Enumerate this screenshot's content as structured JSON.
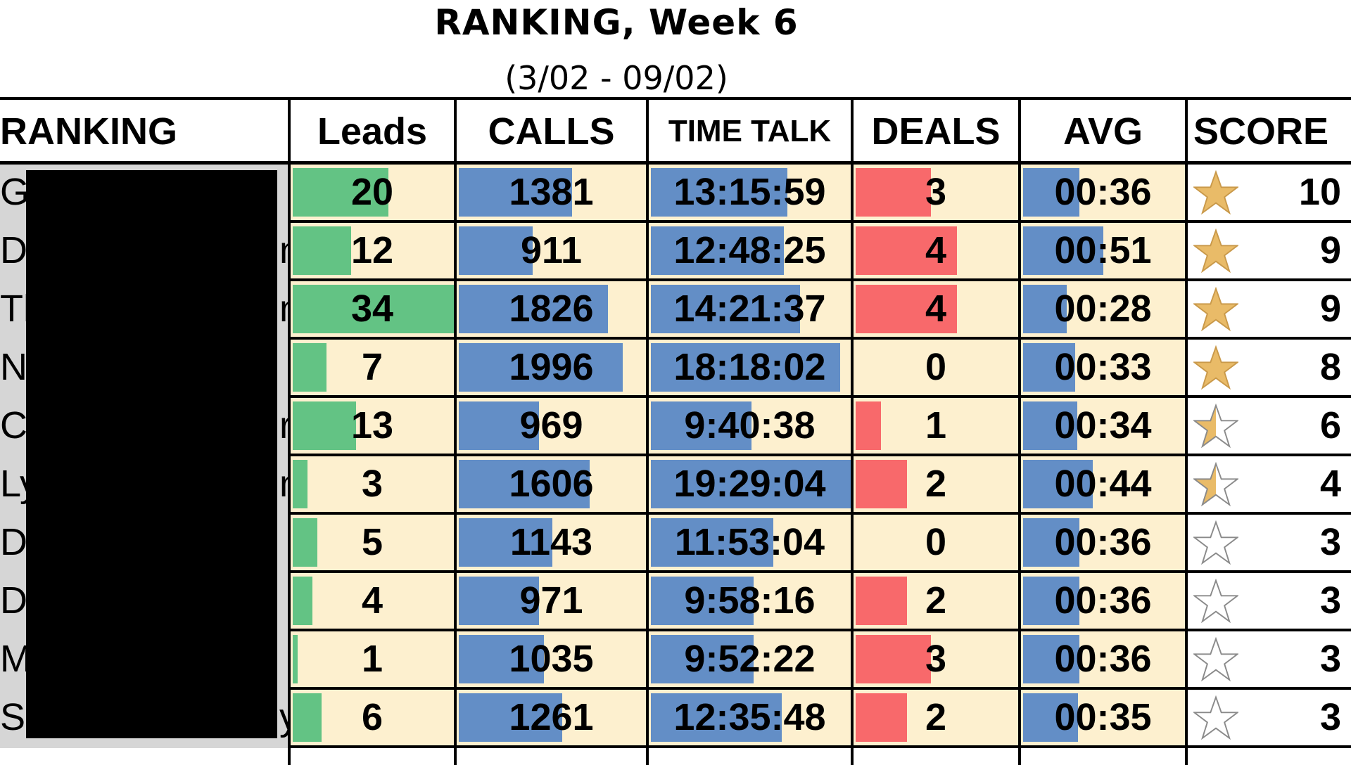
{
  "header": {
    "title": "RANKING, Week 6",
    "subtitle": "(3/02 - 09/02)"
  },
  "columns": {
    "ranking": "RANKING",
    "leads": "Leads",
    "calls": "CALLS",
    "time_talk": "TIME TALK",
    "deals": "DEALS",
    "avg": "AVG",
    "score": "SCORE"
  },
  "colors": {
    "leads_bar": "#63c384",
    "calls_bar": "#638ec6",
    "time_bar": "#638ec6",
    "deals_bar": "#f8696b",
    "avg_bar": "#638ec6",
    "cell_bg": "#fdf0cf",
    "name_bg": "#d6d6d6",
    "star_fill": "#e9bb68"
  },
  "rows": [
    {
      "name": "Ga",
      "name_tail": "",
      "leads": "20",
      "leads_fill": 0.59,
      "calls": "1381",
      "calls_fill": 0.69,
      "time": "13:15:59",
      "time_fill": 0.68,
      "deals": "3",
      "deals_fill": 0.59,
      "avg": "00:36",
      "avg_fill": 0.5,
      "star": "full",
      "score": "10"
    },
    {
      "name": "Do",
      "name_tail": "n",
      "leads": "12",
      "leads_fill": 0.36,
      "calls": "911",
      "calls_fill": 0.45,
      "time": "12:48:25",
      "time_fill": 0.66,
      "deals": "4",
      "deals_fill": 0.79,
      "avg": "00:51",
      "avg_fill": 0.71,
      "star": "full",
      "score": "9"
    },
    {
      "name": "Th",
      "name_tail": "n",
      "leads": "34",
      "leads_fill": 1.0,
      "calls": "1826",
      "calls_fill": 0.91,
      "time": "14:21:37",
      "time_fill": 0.74,
      "deals": "4",
      "deals_fill": 0.79,
      "avg": "00:28",
      "avg_fill": 0.39,
      "star": "full",
      "score": "9"
    },
    {
      "name": "N",
      "name_tail": "",
      "leads": "7",
      "leads_fill": 0.21,
      "calls": "1996",
      "calls_fill": 1.0,
      "time": "18:18:02",
      "time_fill": 0.94,
      "deals": "0",
      "deals_fill": 0.0,
      "avg": "00:33",
      "avg_fill": 0.46,
      "star": "full",
      "score": "8"
    },
    {
      "name": "Ca",
      "name_tail": "r",
      "leads": "13",
      "leads_fill": 0.39,
      "calls": "969",
      "calls_fill": 0.49,
      "time": "9:40:38",
      "time_fill": 0.5,
      "deals": "1",
      "deals_fill": 0.2,
      "avg": "00:34",
      "avg_fill": 0.48,
      "star": "half",
      "score": "6"
    },
    {
      "name": "Ly",
      "name_tail": "n",
      "leads": "3",
      "leads_fill": 0.09,
      "calls": "1606",
      "calls_fill": 0.8,
      "time": "19:29:04",
      "time_fill": 1.0,
      "deals": "2",
      "deals_fill": 0.4,
      "avg": "00:44",
      "avg_fill": 0.62,
      "star": "half",
      "score": "4"
    },
    {
      "name": "Da",
      "name_tail": "",
      "leads": "5",
      "leads_fill": 0.15,
      "calls": "1143",
      "calls_fill": 0.57,
      "time": "11:53:04",
      "time_fill": 0.61,
      "deals": "0",
      "deals_fill": 0.0,
      "avg": "00:36",
      "avg_fill": 0.5,
      "star": "empty",
      "score": "3"
    },
    {
      "name": "Do",
      "name_tail": "",
      "leads": "4",
      "leads_fill": 0.12,
      "calls": "971",
      "calls_fill": 0.49,
      "time": "9:58:16",
      "time_fill": 0.51,
      "deals": "2",
      "deals_fill": 0.4,
      "avg": "00:36",
      "avg_fill": 0.5,
      "star": "empty",
      "score": "3"
    },
    {
      "name": "M",
      "name_tail": "",
      "leads": "1",
      "leads_fill": 0.03,
      "calls": "1035",
      "calls_fill": 0.52,
      "time": "9:52:22",
      "time_fill": 0.51,
      "deals": "3",
      "deals_fill": 0.59,
      "avg": "00:36",
      "avg_fill": 0.5,
      "star": "empty",
      "score": "3"
    },
    {
      "name": "Sa",
      "name_tail": "y",
      "leads": "6",
      "leads_fill": 0.18,
      "calls": "1261",
      "calls_fill": 0.63,
      "time": "12:35:48",
      "time_fill": 0.65,
      "deals": "2",
      "deals_fill": 0.4,
      "avg": "00:35",
      "avg_fill": 0.49,
      "star": "empty",
      "score": "3"
    }
  ]
}
